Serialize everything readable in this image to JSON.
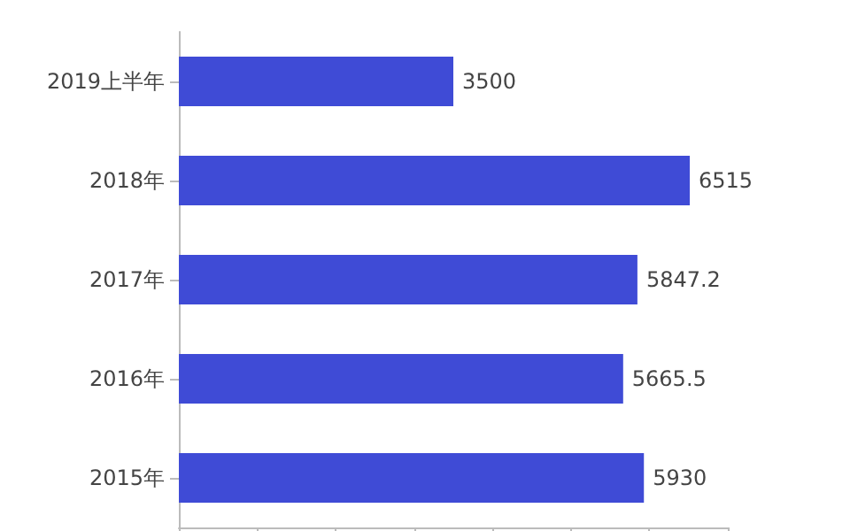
{
  "chart_data": {
    "type": "bar",
    "orientation": "horizontal",
    "categories": [
      "2019上半年",
      "2018年",
      "2017年",
      "2016年",
      "2015年"
    ],
    "values": [
      3500,
      6515,
      5847.2,
      5665.5,
      5930
    ],
    "color": "#3f4bd6",
    "data_labels": true,
    "xlim": [
      0,
      7000
    ],
    "xticks": [
      {
        "value": 0,
        "label": null
      },
      {
        "value": 1000,
        "label": null
      },
      {
        "value": 2000,
        "label": null
      },
      {
        "value": 3000,
        "label": null
      },
      {
        "value": 4000,
        "label": null
      },
      {
        "value": 5000,
        "label": null
      },
      {
        "value": 6000,
        "label": null
      },
      {
        "value": 7000,
        "label": null
      }
    ],
    "tick_labels": "y",
    "grid": false
  }
}
